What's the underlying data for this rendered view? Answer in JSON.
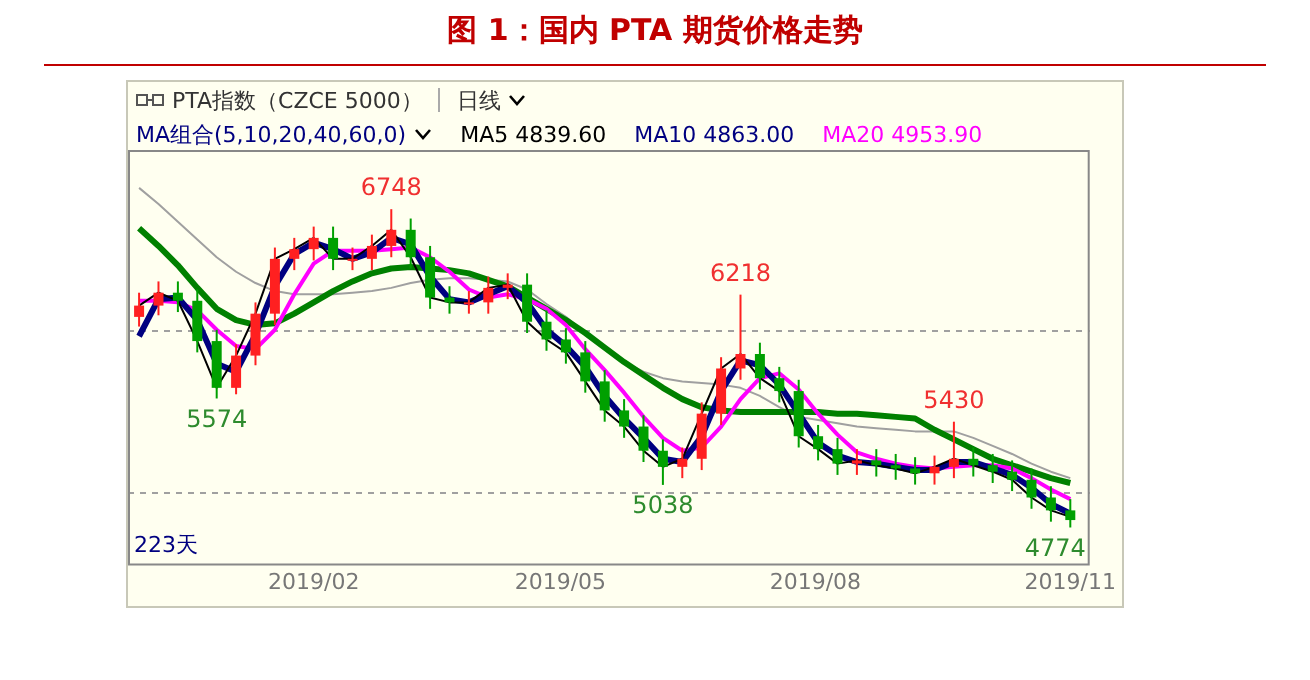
{
  "chart_data": {
    "type": "candlestick",
    "title": "图 1：国内 PTA 期货价格走势",
    "x": [
      "2018-11-30",
      "2018-12-07",
      "2018-12-14",
      "2018-12-21",
      "2018-12-28",
      "2019-01-04",
      "2019-01-11",
      "2019-01-18",
      "2019-01-25",
      "2019-02-01",
      "2019-02-08",
      "2019-02-15",
      "2019-02-22",
      "2019-03-01",
      "2019-03-08",
      "2019-03-15",
      "2019-03-22",
      "2019-03-29",
      "2019-04-05",
      "2019-04-12",
      "2019-04-19",
      "2019-04-26",
      "2019-05-03",
      "2019-05-10",
      "2019-05-17",
      "2019-05-24",
      "2019-05-31",
      "2019-06-07",
      "2019-06-14",
      "2019-06-21",
      "2019-06-28",
      "2019-07-05",
      "2019-07-12",
      "2019-07-19",
      "2019-07-26",
      "2019-08-02",
      "2019-08-09",
      "2019-08-16",
      "2019-08-23",
      "2019-08-30",
      "2019-09-06",
      "2019-09-13",
      "2019-09-20",
      "2019-09-27",
      "2019-10-04",
      "2019-10-11",
      "2019-10-18",
      "2019-10-25",
      "2019-11-01"
    ],
    "ohlc": [
      [
        6080,
        6230,
        6020,
        6150
      ],
      [
        6150,
        6300,
        6090,
        6230
      ],
      [
        6230,
        6300,
        6110,
        6180
      ],
      [
        6180,
        6250,
        5860,
        5930
      ],
      [
        5930,
        6000,
        5574,
        5640
      ],
      [
        5640,
        5910,
        5600,
        5840
      ],
      [
        5840,
        6170,
        5780,
        6100
      ],
      [
        6100,
        6510,
        6030,
        6440
      ],
      [
        6440,
        6570,
        6370,
        6500
      ],
      [
        6500,
        6640,
        6430,
        6570
      ],
      [
        6570,
        6640,
        6370,
        6440
      ],
      [
        6440,
        6510,
        6370,
        6440
      ],
      [
        6440,
        6590,
        6370,
        6520
      ],
      [
        6520,
        6748,
        6450,
        6620
      ],
      [
        6620,
        6690,
        6380,
        6450
      ],
      [
        6450,
        6520,
        6130,
        6200
      ],
      [
        6200,
        6270,
        6100,
        6170
      ],
      [
        6170,
        6240,
        6100,
        6170
      ],
      [
        6170,
        6330,
        6100,
        6260
      ],
      [
        6260,
        6350,
        6190,
        6280
      ],
      [
        6280,
        6350,
        5980,
        6050
      ],
      [
        6050,
        6120,
        5870,
        5940
      ],
      [
        5940,
        6010,
        5790,
        5860
      ],
      [
        5860,
        5930,
        5610,
        5680
      ],
      [
        5680,
        5750,
        5430,
        5500
      ],
      [
        5500,
        5570,
        5330,
        5400
      ],
      [
        5400,
        5470,
        5180,
        5250
      ],
      [
        5250,
        5320,
        5038,
        5150
      ],
      [
        5150,
        5270,
        5080,
        5200
      ],
      [
        5200,
        5550,
        5130,
        5480
      ],
      [
        5480,
        5830,
        5410,
        5760
      ],
      [
        5760,
        6218,
        5690,
        5850
      ],
      [
        5850,
        5920,
        5630,
        5700
      ],
      [
        5700,
        5770,
        5550,
        5620
      ],
      [
        5620,
        5690,
        5270,
        5340
      ],
      [
        5340,
        5410,
        5190,
        5260
      ],
      [
        5260,
        5330,
        5100,
        5170
      ],
      [
        5170,
        5260,
        5100,
        5190
      ],
      [
        5190,
        5260,
        5090,
        5160
      ],
      [
        5160,
        5230,
        5070,
        5140
      ],
      [
        5140,
        5210,
        5040,
        5110
      ],
      [
        5110,
        5220,
        5040,
        5150
      ],
      [
        5150,
        5430,
        5080,
        5200
      ],
      [
        5200,
        5270,
        5090,
        5160
      ],
      [
        5160,
        5230,
        5050,
        5120
      ],
      [
        5120,
        5190,
        5000,
        5070
      ],
      [
        5070,
        5140,
        4890,
        4960
      ],
      [
        4960,
        5030,
        4810,
        4880
      ],
      [
        4880,
        4950,
        4774,
        4820
      ]
    ],
    "series": [
      {
        "name": "MA5 4839.60",
        "type": "line",
        "color": "#000000",
        "values": [
          6150,
          6230,
          6180,
          5930,
          5640,
          5840,
          6100,
          6440,
          6500,
          6570,
          6440,
          6440,
          6520,
          6620,
          6450,
          6200,
          6170,
          6170,
          6260,
          6280,
          6050,
          5940,
          5860,
          5680,
          5500,
          5400,
          5250,
          5150,
          5200,
          5480,
          5760,
          5850,
          5700,
          5620,
          5340,
          5260,
          5170,
          5190,
          5160,
          5140,
          5110,
          5150,
          5200,
          5160,
          5120,
          5070,
          4960,
          4880,
          4840
        ]
      },
      {
        "name": "MA10 4863.00",
        "type": "line",
        "color": "#000080",
        "values": [
          5960,
          6190,
          6200,
          6060,
          5790,
          5740,
          5970,
          6270,
          6470,
          6540,
          6500,
          6440,
          6480,
          6570,
          6530,
          6330,
          6190,
          6170,
          6220,
          6270,
          6170,
          6000,
          5900,
          5770,
          5590,
          5450,
          5330,
          5200,
          5180,
          5340,
          5620,
          5810,
          5780,
          5660,
          5480,
          5300,
          5220,
          5180,
          5170,
          5150,
          5130,
          5130,
          5180,
          5180,
          5140,
          5100,
          5020,
          4920,
          4860
        ]
      },
      {
        "name": "MA20 4953.90",
        "type": "line",
        "color": "#ff00ff",
        "values": [
          6180,
          6180,
          6170,
          6120,
          6000,
          5900,
          5880,
          6000,
          6220,
          6410,
          6490,
          6490,
          6490,
          6500,
          6510,
          6450,
          6360,
          6250,
          6200,
          6220,
          6190,
          6130,
          6030,
          5880,
          5750,
          5610,
          5460,
          5330,
          5250,
          5270,
          5400,
          5570,
          5700,
          5730,
          5630,
          5480,
          5350,
          5240,
          5200,
          5170,
          5150,
          5140,
          5150,
          5160,
          5160,
          5140,
          5080,
          5010,
          4950
        ]
      },
      {
        "type": "line",
        "color": "#008000",
        "values": [
          6630,
          6520,
          6400,
          6260,
          6130,
          6060,
          6030,
          6040,
          6100,
          6170,
          6240,
          6300,
          6350,
          6380,
          6390,
          6380,
          6370,
          6350,
          6310,
          6270,
          6200,
          6130,
          6060,
          5980,
          5890,
          5800,
          5720,
          5640,
          5570,
          5520,
          5500,
          5490,
          5490,
          5490,
          5490,
          5490,
          5480,
          5480,
          5470,
          5460,
          5450,
          5380,
          5320,
          5260,
          5200,
          5160,
          5120,
          5080,
          5050
        ]
      },
      {
        "type": "line",
        "color": "#a0a0a0",
        "values": [
          6880,
          6780,
          6670,
          6560,
          6450,
          6360,
          6290,
          6240,
          6220,
          6220,
          6220,
          6230,
          6240,
          6260,
          6290,
          6310,
          6320,
          6320,
          6310,
          6300,
          6250,
          6160,
          6080,
          5980,
          5880,
          5800,
          5740,
          5700,
          5680,
          5670,
          5660,
          5640,
          5590,
          5520,
          5460,
          5440,
          5420,
          5400,
          5390,
          5380,
          5370,
          5370,
          5370,
          5330,
          5280,
          5230,
          5170,
          5120,
          5080
        ]
      }
    ],
    "xlim": [
      "2018-11-26",
      "2019-11-08"
    ],
    "xticks": [
      {
        "value": "2019-02",
        "label": "2019/02"
      },
      {
        "value": "2019-05",
        "label": "2019/05"
      },
      {
        "value": "2019-08",
        "label": "2019/08"
      },
      {
        "value": "2019-11",
        "label": "2019/11"
      }
    ],
    "ylim": [
      4550,
      7115
    ],
    "yticks": [
      {
        "value": 5000,
        "label": null
      },
      {
        "value": 6000,
        "label": null
      }
    ],
    "grid": "y",
    "legend": "top left",
    "tick_labels": "x",
    "marker": "none",
    "line_style": "solid",
    "annotations": [
      "PTA指数（CZCE 5000）",
      "日线",
      "MA组合(5,10,20,40,60,0)",
      "223天",
      {
        "text": "6748",
        "x": "2019-03-01",
        "y": 6748
      },
      {
        "text": "5574",
        "x": "2018-12-28",
        "y": 5574
      },
      {
        "text": "6218",
        "x": "2019-07-05",
        "y": 6218
      },
      {
        "text": "5038",
        "x": "2019-06-07",
        "y": 5038
      },
      {
        "text": "5430",
        "x": "2019-09-20",
        "y": 5430
      },
      {
        "text": "4774",
        "x": "2019-11-01",
        "y": 4774
      }
    ]
  }
}
